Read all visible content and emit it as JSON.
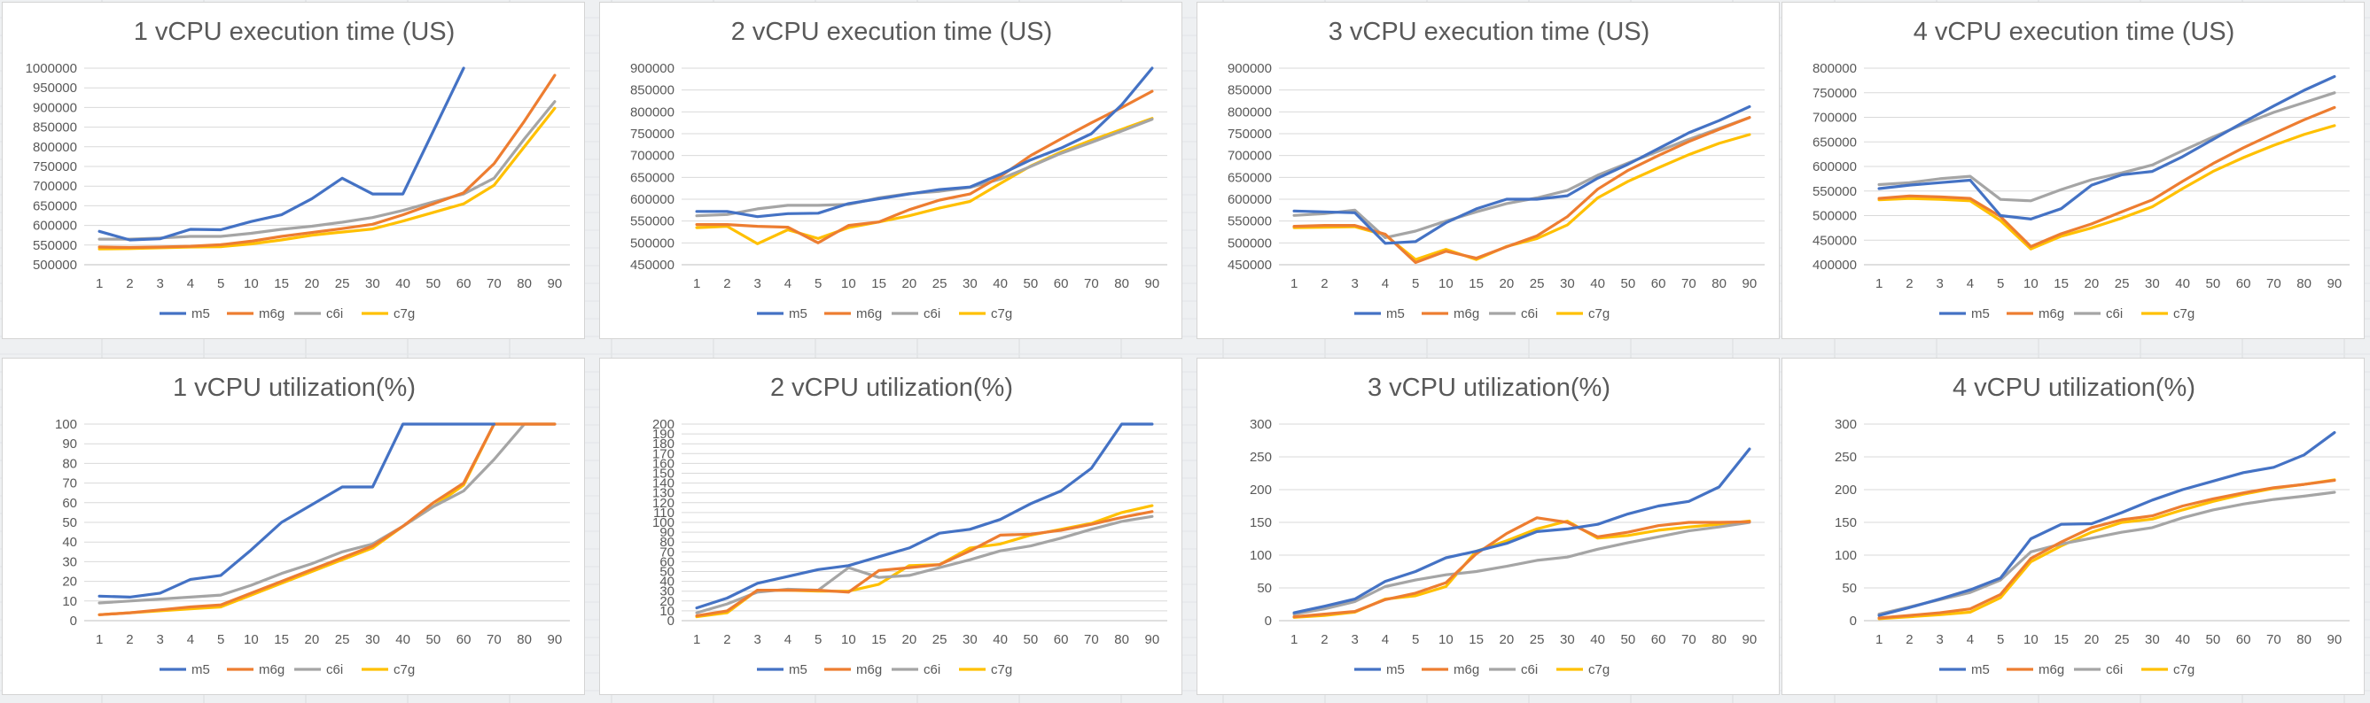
{
  "colors": {
    "m5": "#4472c4",
    "m6g": "#ed7d31",
    "c6i": "#a5a5a5",
    "c7g": "#ffc000"
  },
  "chart_data": [
    {
      "type": "line",
      "title": "1 vCPU execution time (US)",
      "categories": [
        "1",
        "2",
        "3",
        "4",
        "5",
        "10",
        "15",
        "20",
        "25",
        "30",
        "40",
        "50",
        "60",
        "70",
        "80",
        "90"
      ],
      "ylim": [
        500000,
        1000000
      ],
      "yticks": [
        "500000",
        "550000",
        "600000",
        "650000",
        "700000",
        "750000",
        "800000",
        "850000",
        "900000",
        "950000",
        "1000000"
      ],
      "legend": "bottom",
      "series": [
        {
          "name": "m5",
          "color": "#4472c4",
          "values": [
            585000,
            563000,
            566000,
            590000,
            589000,
            610000,
            627000,
            668000,
            720000,
            680000,
            680000,
            840000,
            1000000,
            null,
            null,
            null
          ]
        },
        {
          "name": "m6g",
          "color": "#ed7d31",
          "values": [
            545000,
            544000,
            545000,
            547000,
            551000,
            560000,
            572000,
            582000,
            592000,
            603000,
            627000,
            655000,
            683000,
            757000,
            865000,
            982000
          ]
        },
        {
          "name": "c6i",
          "color": "#a5a5a5",
          "values": [
            565000,
            565000,
            568000,
            572000,
            572000,
            580000,
            590000,
            598000,
            608000,
            620000,
            638000,
            660000,
            680000,
            720000,
            820000,
            915000
          ]
        },
        {
          "name": "c7g",
          "color": "#ffc000",
          "values": [
            540000,
            541000,
            543000,
            545000,
            546000,
            553000,
            563000,
            575000,
            583000,
            591000,
            611000,
            633000,
            655000,
            702000,
            800000,
            898000
          ]
        }
      ]
    },
    {
      "type": "line",
      "title": "2 vCPU execution time (US)",
      "categories": [
        "1",
        "2",
        "3",
        "4",
        "5",
        "10",
        "15",
        "20",
        "25",
        "30",
        "40",
        "50",
        "60",
        "70",
        "80",
        "90"
      ],
      "ylim": [
        450000,
        900000
      ],
      "yticks": [
        "450000",
        "500000",
        "550000",
        "600000",
        "650000",
        "700000",
        "750000",
        "800000",
        "850000",
        "900000"
      ],
      "legend": "bottom",
      "series": [
        {
          "name": "m5",
          "color": "#4472c4",
          "values": [
            572000,
            572000,
            560000,
            567000,
            568000,
            590000,
            601000,
            612000,
            622000,
            628000,
            657000,
            690000,
            717000,
            750000,
            816000,
            900000
          ]
        },
        {
          "name": "m6g",
          "color": "#ed7d31",
          "values": [
            542000,
            542000,
            538000,
            536000,
            500000,
            540000,
            548000,
            576000,
            598000,
            612000,
            652000,
            700000,
            738000,
            775000,
            810000,
            847000
          ]
        },
        {
          "name": "c6i",
          "color": "#a5a5a5",
          "values": [
            562000,
            565000,
            578000,
            586000,
            586000,
            588000,
            603000,
            613000,
            618000,
            627000,
            646000,
            675000,
            705000,
            730000,
            756000,
            783000
          ]
        },
        {
          "name": "c7g",
          "color": "#ffc000",
          "values": [
            535000,
            538000,
            498000,
            530000,
            510000,
            535000,
            548000,
            562000,
            580000,
            595000,
            636000,
            676000,
            708000,
            735000,
            760000,
            785000
          ]
        }
      ]
    },
    {
      "type": "line",
      "title": "3 vCPU execution time (US)",
      "categories": [
        "1",
        "2",
        "3",
        "4",
        "5",
        "10",
        "15",
        "20",
        "25",
        "30",
        "40",
        "50",
        "60",
        "70",
        "80",
        "90"
      ],
      "ylim": [
        450000,
        900000
      ],
      "yticks": [
        "450000",
        "500000",
        "550000",
        "600000",
        "650000",
        "700000",
        "750000",
        "800000",
        "850000",
        "900000"
      ],
      "legend": "bottom",
      "series": [
        {
          "name": "m5",
          "color": "#4472c4",
          "values": [
            573000,
            571000,
            569000,
            499000,
            503000,
            546000,
            578000,
            600000,
            600000,
            608000,
            648000,
            680000,
            716000,
            752000,
            780000,
            812000
          ]
        },
        {
          "name": "m6g",
          "color": "#ed7d31",
          "values": [
            538000,
            540000,
            540000,
            520000,
            455000,
            481000,
            465000,
            491000,
            516000,
            560000,
            623000,
            666000,
            700000,
            732000,
            760000,
            787000
          ]
        },
        {
          "name": "c6i",
          "color": "#a5a5a5",
          "values": [
            563000,
            567000,
            575000,
            512000,
            527000,
            550000,
            571000,
            590000,
            603000,
            620000,
            655000,
            683000,
            710000,
            737000,
            762000,
            787000
          ]
        },
        {
          "name": "c7g",
          "color": "#ffc000",
          "values": [
            535000,
            536000,
            537000,
            518000,
            462000,
            485000,
            462000,
            492000,
            510000,
            541000,
            603000,
            641000,
            672000,
            702000,
            728000,
            748000
          ]
        }
      ]
    },
    {
      "type": "line",
      "title": "4 vCPU execution time (US)",
      "categories": [
        "1",
        "2",
        "3",
        "4",
        "5",
        "10",
        "15",
        "20",
        "25",
        "30",
        "40",
        "50",
        "60",
        "70",
        "80",
        "90"
      ],
      "ylim": [
        400000,
        800000
      ],
      "yticks": [
        "400000",
        "450000",
        "500000",
        "550000",
        "600000",
        "650000",
        "700000",
        "750000",
        "800000"
      ],
      "legend": "bottom",
      "series": [
        {
          "name": "m5",
          "color": "#4472c4",
          "values": [
            555000,
            562000,
            567000,
            572000,
            500000,
            493000,
            514000,
            562000,
            583000,
            590000,
            620000,
            655000,
            690000,
            723000,
            755000,
            783000
          ]
        },
        {
          "name": "m6g",
          "color": "#ed7d31",
          "values": [
            535000,
            540000,
            538000,
            535000,
            498000,
            437000,
            463000,
            483000,
            508000,
            532000,
            570000,
            606000,
            638000,
            667000,
            695000,
            720000
          ]
        },
        {
          "name": "c6i",
          "color": "#a5a5a5",
          "values": [
            563000,
            567000,
            575000,
            580000,
            533000,
            530000,
            553000,
            573000,
            587000,
            603000,
            632000,
            660000,
            686000,
            710000,
            730000,
            750000
          ]
        },
        {
          "name": "c7g",
          "color": "#ffc000",
          "values": [
            532000,
            535000,
            533000,
            530000,
            490000,
            432000,
            458000,
            475000,
            495000,
            518000,
            555000,
            590000,
            618000,
            643000,
            665000,
            683000
          ]
        }
      ]
    },
    {
      "type": "line",
      "title": "1 vCPU utilization(%)",
      "categories": [
        "1",
        "2",
        "3",
        "4",
        "5",
        "10",
        "15",
        "20",
        "25",
        "30",
        "40",
        "50",
        "60",
        "70",
        "80",
        "90"
      ],
      "ylim": [
        0,
        100
      ],
      "yticks": [
        "0",
        "10",
        "20",
        "30",
        "40",
        "50",
        "60",
        "70",
        "80",
        "90",
        "100"
      ],
      "legend": "bottom",
      "series": [
        {
          "name": "m5",
          "color": "#4472c4",
          "values": [
            12.5,
            12,
            14,
            21,
            23,
            36,
            50,
            59,
            68,
            68,
            100,
            100,
            100,
            100,
            null,
            null
          ]
        },
        {
          "name": "m6g",
          "color": "#ed7d31",
          "values": [
            3,
            4,
            5.5,
            7,
            8,
            14,
            20,
            26,
            32,
            38,
            48,
            60,
            70,
            100,
            100,
            100
          ]
        },
        {
          "name": "c6i",
          "color": "#a5a5a5",
          "values": [
            9,
            10,
            11,
            12,
            13,
            18,
            24,
            29,
            35,
            39,
            48,
            58,
            66,
            82,
            100,
            100
          ]
        },
        {
          "name": "c7g",
          "color": "#ffc000",
          "values": [
            3,
            4,
            5,
            6,
            7,
            13,
            19,
            25,
            31,
            37,
            48,
            58,
            69,
            100,
            100,
            100
          ]
        }
      ]
    },
    {
      "type": "line",
      "title": "2 vCPU utilization(%)",
      "categories": [
        "1",
        "2",
        "3",
        "4",
        "5",
        "10",
        "15",
        "20",
        "25",
        "30",
        "40",
        "50",
        "60",
        "70",
        "80",
        "90"
      ],
      "ylim": [
        0,
        200
      ],
      "yticks": [
        "0",
        "10",
        "20",
        "30",
        "40",
        "50",
        "60",
        "70",
        "80",
        "90",
        "100",
        "110",
        "120",
        "130",
        "140",
        "150",
        "160",
        "170",
        "180",
        "190",
        "200"
      ],
      "legend": "bottom",
      "series": [
        {
          "name": "m5",
          "color": "#4472c4",
          "values": [
            13,
            23,
            38,
            45,
            52,
            56,
            65,
            74,
            89,
            93,
            103,
            119,
            132,
            155,
            200,
            200
          ]
        },
        {
          "name": "m6g",
          "color": "#ed7d31",
          "values": [
            5,
            10,
            31,
            31,
            31,
            29,
            51,
            54,
            57,
            71,
            87,
            88,
            92,
            98,
            105,
            111
          ]
        },
        {
          "name": "c6i",
          "color": "#a5a5a5",
          "values": [
            8,
            17,
            29,
            32,
            31,
            54,
            44,
            46,
            54,
            62,
            71,
            76,
            84,
            93,
            101,
            106
          ]
        },
        {
          "name": "c7g",
          "color": "#ffc000",
          "values": [
            4,
            8,
            31,
            31,
            30,
            30,
            37,
            56,
            57,
            74,
            78,
            87,
            93,
            99,
            110,
            117
          ]
        }
      ]
    },
    {
      "type": "line",
      "title": "3 vCPU utilization(%)",
      "categories": [
        "1",
        "2",
        "3",
        "4",
        "5",
        "10",
        "15",
        "20",
        "25",
        "30",
        "40",
        "50",
        "60",
        "70",
        "80",
        "90"
      ],
      "ylim": [
        0,
        300
      ],
      "yticks": [
        "0",
        "50",
        "100",
        "150",
        "200",
        "250",
        "300"
      ],
      "legend": "bottom",
      "series": [
        {
          "name": "m5",
          "color": "#4472c4",
          "values": [
            12,
            22,
            33,
            60,
            75,
            96,
            106,
            118,
            136,
            140,
            147,
            163,
            175,
            182,
            204,
            262
          ]
        },
        {
          "name": "m6g",
          "color": "#ed7d31",
          "values": [
            6,
            10,
            14,
            32,
            42,
            58,
            102,
            133,
            157,
            150,
            128,
            135,
            145,
            150,
            150,
            151
          ]
        },
        {
          "name": "c6i",
          "color": "#a5a5a5",
          "values": [
            10,
            18,
            29,
            52,
            62,
            70,
            75,
            83,
            92,
            97,
            109,
            119,
            128,
            137,
            143,
            150
          ]
        },
        {
          "name": "c7g",
          "color": "#ffc000",
          "values": [
            5,
            8,
            13,
            33,
            38,
            52,
            106,
            122,
            140,
            152,
            126,
            130,
            138,
            143,
            147,
            152
          ]
        }
      ]
    },
    {
      "type": "line",
      "title": "4 vCPU utilization(%)",
      "categories": [
        "1",
        "2",
        "3",
        "4",
        "5",
        "10",
        "15",
        "20",
        "25",
        "30",
        "40",
        "50",
        "60",
        "70",
        "80",
        "90"
      ],
      "ylim": [
        0,
        300
      ],
      "yticks": [
        "0",
        "50",
        "100",
        "150",
        "200",
        "250",
        "300"
      ],
      "legend": "bottom",
      "series": [
        {
          "name": "m5",
          "color": "#4472c4",
          "values": [
            8,
            20,
            33,
            47,
            65,
            125,
            147,
            148,
            165,
            184,
            200,
            213,
            226,
            234,
            253,
            287
          ]
        },
        {
          "name": "m6g",
          "color": "#ed7d31",
          "values": [
            4,
            8,
            12,
            18,
            40,
            95,
            120,
            142,
            154,
            160,
            175,
            186,
            195,
            203,
            208,
            214
          ]
        },
        {
          "name": "c6i",
          "color": "#a5a5a5",
          "values": [
            10,
            21,
            32,
            43,
            62,
            105,
            117,
            126,
            135,
            142,
            157,
            169,
            178,
            185,
            190,
            196
          ]
        },
        {
          "name": "c7g",
          "color": "#ffc000",
          "values": [
            3,
            6,
            9,
            13,
            35,
            90,
            114,
            135,
            150,
            155,
            169,
            182,
            193,
            202,
            208,
            215
          ]
        }
      ]
    }
  ]
}
